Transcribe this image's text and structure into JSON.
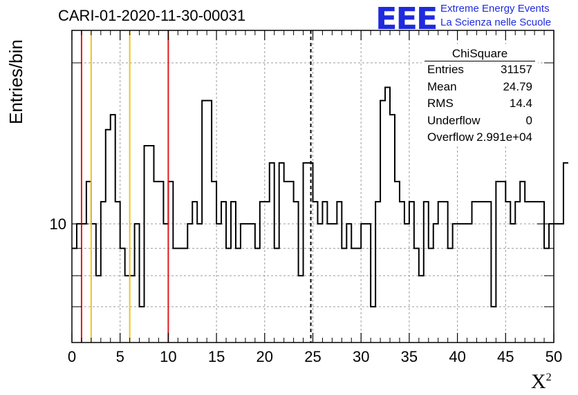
{
  "header": {
    "title": "CARI-01-2020-11-30-00031",
    "logo_text": "EEE",
    "logo_line1": "Extreme Energy Events",
    "logo_line2": "La Scienza nelle Scuole"
  },
  "stats_box": {
    "name": "ChiSquare",
    "rows": [
      {
        "key": "Entries",
        "value": "31157"
      },
      {
        "key": "Mean",
        "value": "24.79"
      },
      {
        "key": "RMS",
        "value": "14.4"
      },
      {
        "key": "Underflow",
        "value": "0"
      },
      {
        "key": "Overflow",
        "value": "2.991e+04"
      }
    ]
  },
  "colors": {
    "red_line": "#e0191c",
    "yellow_line": "#f2c21b",
    "histogram": "#000000",
    "grid": "#9a9a9a",
    "logo": "#1f2bdc"
  },
  "chart_data": {
    "type": "histogram",
    "title": "CARI-01-2020-11-30-00031",
    "xlabel": "X",
    "xlabel_sup": "2",
    "ylabel": "Entries/bin",
    "xlim": [
      0,
      50
    ],
    "ylim": [
      6,
      23
    ],
    "y_scale": "log",
    "xticks": [
      0,
      5,
      10,
      15,
      20,
      25,
      30,
      35,
      40,
      45,
      50
    ],
    "xtick_labels": [
      "0",
      "5",
      "10",
      "15",
      "20",
      "25",
      "30",
      "35",
      "40",
      "45",
      "50"
    ],
    "yticks": [
      10
    ],
    "ytick_labels": [
      "10"
    ],
    "grid": true,
    "bin_width": 0.5,
    "bin_start": 0,
    "values": [
      9,
      10,
      10,
      12,
      10,
      8,
      11,
      15,
      16,
      11,
      9,
      8,
      8,
      10,
      7,
      14,
      14,
      12,
      12,
      10,
      12,
      9,
      9,
      9,
      10,
      11,
      10,
      17,
      17,
      12,
      10,
      11,
      9,
      11,
      9,
      10,
      10,
      10,
      9,
      11,
      11,
      13,
      9,
      13,
      12,
      12,
      11,
      8,
      13,
      13,
      11,
      10,
      11,
      10,
      10,
      11,
      9,
      10,
      9,
      9,
      10,
      10,
      7,
      11,
      17,
      18,
      16,
      12,
      11,
      10,
      11,
      9,
      8,
      11,
      9,
      10,
      11,
      11,
      9,
      10,
      10,
      10,
      10,
      11,
      11,
      11,
      11,
      7,
      12,
      12,
      11,
      10,
      11,
      12,
      11,
      11,
      11,
      11,
      9,
      10,
      10,
      10,
      13
    ],
    "vertical_lines": [
      {
        "x": 1,
        "color": "red",
        "style": "solid"
      },
      {
        "x": 2,
        "color": "yellow",
        "style": "solid"
      },
      {
        "x": 6,
        "color": "yellow",
        "style": "solid"
      },
      {
        "x": 10,
        "color": "red",
        "style": "solid"
      },
      {
        "x": 24.79,
        "color": "black",
        "style": "dashed"
      }
    ],
    "legend": "stats box top-right"
  }
}
